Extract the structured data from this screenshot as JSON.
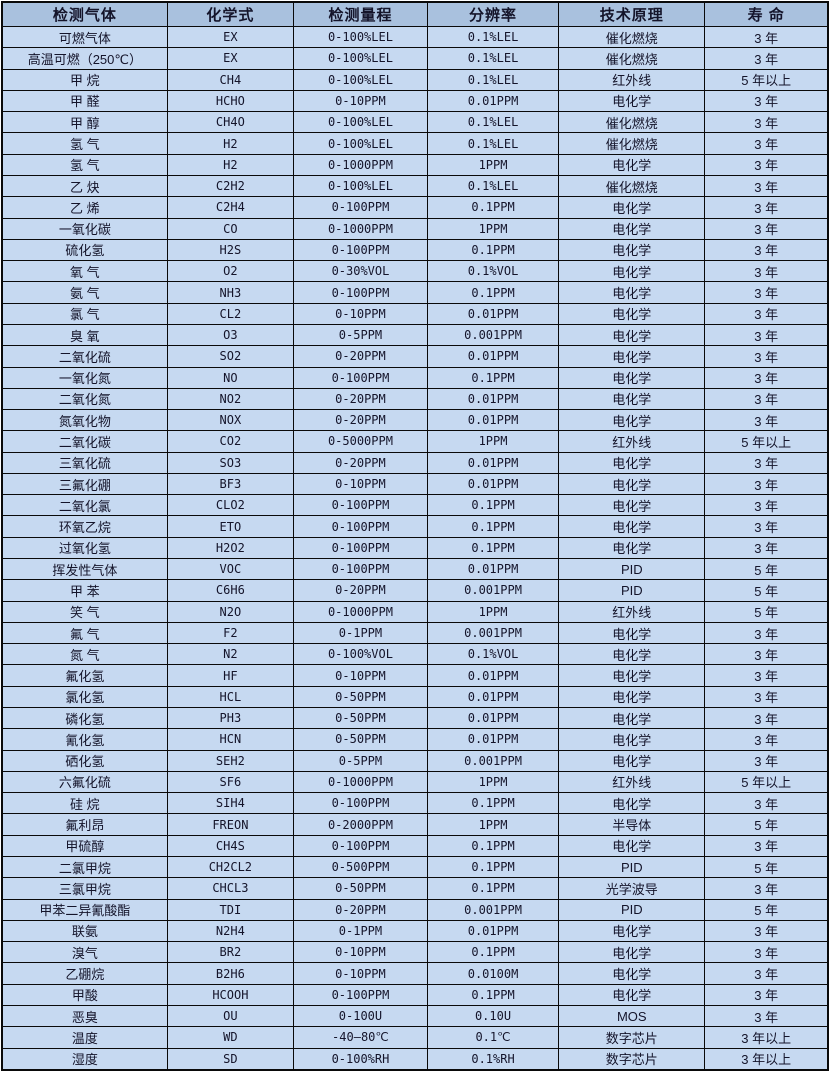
{
  "colors": {
    "header_bg": "#a9c1de",
    "row_bg": "#c6d9f1",
    "border": "#0a0a0a",
    "text": "#14142a"
  },
  "table": {
    "columns": [
      "检测气体",
      "化学式",
      "检测量程",
      "分辨率",
      "技术原理",
      "寿 命"
    ],
    "column_widths_pct": [
      20.0,
      15.3,
      16.2,
      15.9,
      17.7,
      14.9
    ],
    "rows": [
      [
        "可燃气体",
        "EX",
        "0-100%LEL",
        "0.1%LEL",
        "催化燃烧",
        "3 年"
      ],
      [
        "高温可燃（250℃）",
        "EX",
        "0-100%LEL",
        "0.1%LEL",
        "催化燃烧",
        "3 年"
      ],
      [
        "甲 烷",
        "CH4",
        "0-100%LEL",
        "0.1%LEL",
        "红外线",
        "5 年以上"
      ],
      [
        "甲 醛",
        "HCHO",
        "0-10PPM",
        "0.01PPM",
        "电化学",
        "3 年"
      ],
      [
        "甲 醇",
        "CH4O",
        "0-100%LEL",
        "0.1%LEL",
        "催化燃烧",
        "3 年"
      ],
      [
        "氢 气",
        "H2",
        "0-100%LEL",
        "0.1%LEL",
        "催化燃烧",
        "3 年"
      ],
      [
        "氢 气",
        "H2",
        "0-1000PPM",
        "1PPM",
        "电化学",
        "3 年"
      ],
      [
        "乙 炔",
        "C2H2",
        "0-100%LEL",
        "0.1%LEL",
        "催化燃烧",
        "3 年"
      ],
      [
        "乙 烯",
        "C2H4",
        "0-100PPM",
        "0.1PPM",
        "电化学",
        "3 年"
      ],
      [
        "一氧化碳",
        "CO",
        "0-1000PPM",
        "1PPM",
        "电化学",
        "3 年"
      ],
      [
        "硫化氢",
        "H2S",
        "0-100PPM",
        "0.1PPM",
        "电化学",
        "3 年"
      ],
      [
        "氧 气",
        "O2",
        "0-30%VOL",
        "0.1%VOL",
        "电化学",
        "3 年"
      ],
      [
        "氨 气",
        "NH3",
        "0-100PPM",
        "0.1PPM",
        "电化学",
        "3 年"
      ],
      [
        "氯 气",
        "CL2",
        "0-10PPM",
        "0.01PPM",
        "电化学",
        "3 年"
      ],
      [
        "臭 氧",
        "O3",
        "0-5PPM",
        "0.001PPM",
        "电化学",
        "3 年"
      ],
      [
        "二氧化硫",
        "SO2",
        "0-20PPM",
        "0.01PPM",
        "电化学",
        "3 年"
      ],
      [
        "一氧化氮",
        "NO",
        "0-100PPM",
        "0.1PPM",
        "电化学",
        "3 年"
      ],
      [
        "二氧化氮",
        "NO2",
        "0-20PPM",
        "0.01PPM",
        "电化学",
        "3 年"
      ],
      [
        "氮氧化物",
        "NOX",
        "0-20PPM",
        "0.01PPM",
        "电化学",
        "3 年"
      ],
      [
        "二氧化碳",
        "CO2",
        "0-5000PPM",
        "1PPM",
        "红外线",
        "5 年以上"
      ],
      [
        "三氧化硫",
        "SO3",
        "0-20PPM",
        "0.01PPM",
        "电化学",
        "3 年"
      ],
      [
        "三氟化硼",
        "BF3",
        "0-10PPM",
        "0.01PPM",
        "电化学",
        "3 年"
      ],
      [
        "二氧化氯",
        "CLO2",
        "0-100PPM",
        "0.1PPM",
        "电化学",
        "3 年"
      ],
      [
        "环氧乙烷",
        "ETO",
        "0-100PPM",
        "0.1PPM",
        "电化学",
        "3 年"
      ],
      [
        "过氧化氢",
        "H2O2",
        "0-100PPM",
        "0.1PPM",
        "电化学",
        "3 年"
      ],
      [
        "挥发性气体",
        "VOC",
        "0-100PPM",
        "0.01PPM",
        "PID",
        "5 年"
      ],
      [
        "甲 苯",
        "C6H6",
        "0-20PPM",
        "0.001PPM",
        "PID",
        "5 年"
      ],
      [
        "笑 气",
        "N2O",
        "0-1000PPM",
        "1PPM",
        "红外线",
        "5 年"
      ],
      [
        "氟 气",
        "F2",
        "0-1PPM",
        "0.001PPM",
        "电化学",
        "3 年"
      ],
      [
        "氮 气",
        "N2",
        "0-100%VOL",
        "0.1%VOL",
        "电化学",
        "3 年"
      ],
      [
        "氟化氢",
        "HF",
        "0-10PPM",
        "0.01PPM",
        "电化学",
        "3 年"
      ],
      [
        "氯化氢",
        "HCL",
        "0-50PPM",
        "0.01PPM",
        "电化学",
        "3 年"
      ],
      [
        "磷化氢",
        "PH3",
        "0-50PPM",
        "0.01PPM",
        "电化学",
        "3 年"
      ],
      [
        "氰化氢",
        "HCN",
        "0-50PPM",
        "0.01PPM",
        "电化学",
        "3 年"
      ],
      [
        "硒化氢",
        "SEH2",
        "0-5PPM",
        "0.001PPM",
        "电化学",
        "3 年"
      ],
      [
        "六氟化硫",
        "SF6",
        "0-1000PPM",
        "1PPM",
        "红外线",
        "5 年以上"
      ],
      [
        "硅 烷",
        "SIH4",
        "0-100PPM",
        "0.1PPM",
        "电化学",
        "3 年"
      ],
      [
        "氟利昂",
        "FREON",
        "0-2000PPM",
        "1PPM",
        "半导体",
        "5 年"
      ],
      [
        "甲硫醇",
        "CH4S",
        "0-100PPM",
        "0.1PPM",
        "电化学",
        "3 年"
      ],
      [
        "二氯甲烷",
        "CH2CL2",
        "0-500PPM",
        "0.1PPM",
        "PID",
        "5 年"
      ],
      [
        "三氯甲烷",
        "CHCL3",
        "0-50PPM",
        "0.1PPM",
        "光学波导",
        "3 年"
      ],
      [
        "甲苯二异氰酸酯",
        "TDI",
        "0-20PPM",
        "0.001PPM",
        "PID",
        "5 年"
      ],
      [
        "联氨",
        "N2H4",
        "0-1PPM",
        "0.01PPM",
        "电化学",
        "3 年"
      ],
      [
        "溴气",
        "BR2",
        "0-10PPM",
        "0.1PPM",
        "电化学",
        "3 年"
      ],
      [
        "乙硼烷",
        "B2H6",
        "0-10PPM",
        "0.0100M",
        "电化学",
        "3 年"
      ],
      [
        "甲酸",
        "HCOOH",
        "0-100PPM",
        "0.1PPM",
        "电化学",
        "3 年"
      ],
      [
        "恶臭",
        "OU",
        "0-100U",
        "0.10U",
        "MOS",
        "3 年"
      ],
      [
        "温度",
        "WD",
        "-40—80℃",
        "0.1℃",
        "数字芯片",
        "3 年以上"
      ],
      [
        "湿度",
        "SD",
        "0-100%RH",
        "0.1%RH",
        "数字芯片",
        "3 年以上"
      ]
    ]
  }
}
